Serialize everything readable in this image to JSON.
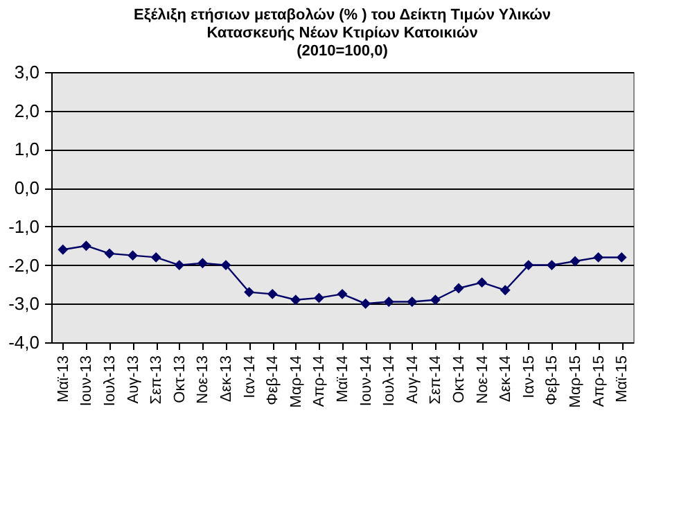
{
  "chart_data": {
    "type": "line",
    "title": [
      "Εξέλιξη ετήσιων μεταβολών (% ) του Δείκτη Τιμών Υλικών",
      "Κατασκευής Νέων Κτιρίων Κατοικιών",
      "(2010=100,0)"
    ],
    "categories": [
      "Μαϊ-13",
      "Ιουν-13",
      "Ιουλ-13",
      "Αυγ-13",
      "Σεπ-13",
      "Οκτ-13",
      "Νοε-13",
      "Δεκ-13",
      "Ιαν-14",
      "Φεβ-14",
      "Μαρ-14",
      "Απρ-14",
      "Μαϊ-14",
      "Ιουν-14",
      "Ιουλ-14",
      "Αυγ-14",
      "Σεπ-14",
      "Οκτ-14",
      "Νοε-14",
      "Δεκ-14",
      "Ιαν-15",
      "Φεβ-15",
      "Μαρ-15",
      "Απρ-15",
      "Μαϊ-15"
    ],
    "series": [
      {
        "color": "#000066",
        "values": [
          -1.6,
          -1.5,
          -1.7,
          -1.75,
          -1.8,
          -2.0,
          -1.95,
          -2.0,
          -2.7,
          -2.75,
          -2.9,
          -2.85,
          -2.75,
          -3.0,
          -2.95,
          -2.95,
          -2.9,
          -2.6,
          -2.45,
          -2.65,
          -2.0,
          -2.0,
          -1.9,
          -1.8,
          -1.8
        ]
      }
    ],
    "ylim": [
      -4,
      3
    ],
    "yticks": [
      {
        "value": -4,
        "label": "-4,0"
      },
      {
        "value": -3,
        "label": "-3,0"
      },
      {
        "value": -2,
        "label": "-2,0"
      },
      {
        "value": -1,
        "label": "-1,0"
      },
      {
        "value": 0,
        "label": "0,0"
      },
      {
        "value": 1,
        "label": "1,0"
      },
      {
        "value": 2,
        "label": "2,0"
      },
      {
        "value": 3,
        "label": "3,0"
      }
    ],
    "grid": "y",
    "marker": "diamond",
    "line_style": "solid"
  }
}
